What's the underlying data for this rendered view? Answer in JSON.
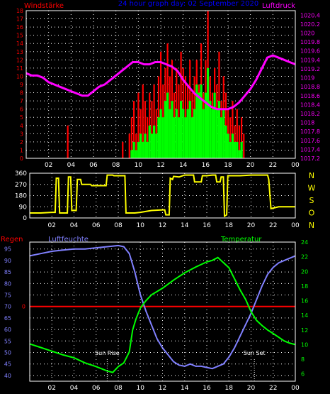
{
  "header": {
    "left_label": "Windstärke",
    "title": "24 hour graph day: 02 September 2020",
    "right_label": "Luftdruck"
  },
  "colors": {
    "background": "#000000",
    "grid": "#ffffff",
    "axis_text": "#ffffff",
    "wind_gust": "#ff0000",
    "wind_avg": "#00ff00",
    "pressure": "#ff00ff",
    "wind_dir": "#ffff00",
    "humidity": "#8080ff",
    "temperature": "#00ff00",
    "rain": "#ff0000",
    "title": "#0000ff",
    "pressure_axis": "#ff00ff",
    "wind_axis": "#ff0000"
  },
  "chart_data": [
    {
      "type": "bar",
      "name_key": "wind_pressure",
      "x_ticks": [
        "02",
        "04",
        "06",
        "08",
        "10",
        "12",
        "14",
        "16",
        "18",
        "20",
        "22",
        "00"
      ],
      "wind_axis_ticks": [
        "0",
        "1",
        "2",
        "3",
        "4",
        "5",
        "6",
        "7",
        "8",
        "9",
        "10",
        "11",
        "12",
        "13",
        "14",
        "15",
        "16",
        "17",
        "18"
      ],
      "pressure_axis_ticks": [
        "1017.2",
        "1017.4",
        "1017.6",
        "1017.8",
        "1018",
        "1018.2",
        "1018.4",
        "1018.6",
        "1018.8",
        "1019",
        "1019.2",
        "1019.4",
        "1019.6",
        "1019.8",
        "1020",
        "1020.2",
        "1020.4"
      ],
      "wind_ylim": [
        0,
        18
      ],
      "pressure_ylim": [
        1017.2,
        1020.5
      ],
      "gust_bars": [
        [
          3.7,
          4
        ],
        [
          8.6,
          2
        ],
        [
          9.2,
          3
        ],
        [
          9.4,
          5
        ],
        [
          9.6,
          7
        ],
        [
          9.8,
          3
        ],
        [
          10.0,
          8
        ],
        [
          10.2,
          6
        ],
        [
          10.4,
          9
        ],
        [
          10.6,
          7
        ],
        [
          10.8,
          5
        ],
        [
          11.0,
          8
        ],
        [
          11.2,
          7
        ],
        [
          11.4,
          9
        ],
        [
          11.6,
          6
        ],
        [
          11.8,
          10
        ],
        [
          12.0,
          13
        ],
        [
          12.2,
          9
        ],
        [
          12.4,
          11
        ],
        [
          12.6,
          14
        ],
        [
          12.8,
          10
        ],
        [
          13.0,
          12
        ],
        [
          13.2,
          8
        ],
        [
          13.4,
          11
        ],
        [
          13.6,
          9
        ],
        [
          13.8,
          13
        ],
        [
          14.0,
          11
        ],
        [
          14.2,
          10
        ],
        [
          14.4,
          9
        ],
        [
          14.6,
          12
        ],
        [
          14.8,
          8
        ],
        [
          15.0,
          10
        ],
        [
          15.2,
          12
        ],
        [
          15.4,
          9
        ],
        [
          15.6,
          14
        ],
        [
          15.8,
          8
        ],
        [
          16.0,
          12
        ],
        [
          16.2,
          18
        ],
        [
          16.4,
          10
        ],
        [
          16.6,
          8
        ],
        [
          16.8,
          11
        ],
        [
          17.0,
          9
        ],
        [
          17.2,
          13
        ],
        [
          17.4,
          7
        ],
        [
          17.6,
          10
        ],
        [
          17.8,
          8
        ],
        [
          18.0,
          6
        ],
        [
          18.2,
          5
        ],
        [
          18.4,
          7
        ],
        [
          18.6,
          4
        ],
        [
          18.8,
          6
        ],
        [
          19.0,
          4
        ],
        [
          19.2,
          5
        ],
        [
          19.4,
          3
        ]
      ],
      "avg_bars": [
        [
          9.4,
          1
        ],
        [
          9.6,
          2
        ],
        [
          9.8,
          1
        ],
        [
          10.0,
          2
        ],
        [
          10.2,
          3
        ],
        [
          10.4,
          2
        ],
        [
          10.6,
          3
        ],
        [
          10.8,
          2
        ],
        [
          11.0,
          4
        ],
        [
          11.2,
          3
        ],
        [
          11.4,
          4
        ],
        [
          11.6,
          3
        ],
        [
          11.8,
          5
        ],
        [
          12.0,
          6
        ],
        [
          12.2,
          5
        ],
        [
          12.4,
          7
        ],
        [
          12.6,
          8
        ],
        [
          12.8,
          6
        ],
        [
          13.0,
          7
        ],
        [
          13.2,
          5
        ],
        [
          13.4,
          6
        ],
        [
          13.6,
          5
        ],
        [
          13.8,
          7
        ],
        [
          14.0,
          6
        ],
        [
          14.2,
          5
        ],
        [
          14.4,
          6
        ],
        [
          14.6,
          7
        ],
        [
          14.8,
          5
        ],
        [
          15.0,
          6
        ],
        [
          15.2,
          9
        ],
        [
          15.4,
          8
        ],
        [
          15.6,
          9
        ],
        [
          15.8,
          6
        ],
        [
          16.0,
          8
        ],
        [
          16.2,
          11
        ],
        [
          16.4,
          7
        ],
        [
          16.6,
          6
        ],
        [
          16.8,
          8
        ],
        [
          17.0,
          6
        ],
        [
          17.2,
          7
        ],
        [
          17.4,
          5
        ],
        [
          17.6,
          6
        ],
        [
          17.8,
          4
        ],
        [
          18.0,
          3
        ],
        [
          18.2,
          2
        ],
        [
          18.4,
          3
        ],
        [
          18.6,
          2
        ],
        [
          18.8,
          2
        ],
        [
          19.0,
          1
        ],
        [
          19.2,
          2
        ]
      ],
      "pressure_series": [
        [
          0,
          1019.1
        ],
        [
          0.5,
          1019.05
        ],
        [
          1,
          1019.05
        ],
        [
          1.5,
          1019.0
        ],
        [
          2,
          1018.9
        ],
        [
          2.5,
          1018.85
        ],
        [
          3,
          1018.8
        ],
        [
          3.5,
          1018.75
        ],
        [
          4,
          1018.7
        ],
        [
          4.5,
          1018.65
        ],
        [
          5,
          1018.6
        ],
        [
          5.5,
          1018.6
        ],
        [
          6,
          1018.7
        ],
        [
          6.5,
          1018.8
        ],
        [
          7,
          1018.85
        ],
        [
          7.5,
          1018.95
        ],
        [
          8,
          1019.05
        ],
        [
          8.5,
          1019.15
        ],
        [
          9,
          1019.25
        ],
        [
          9.5,
          1019.35
        ],
        [
          10,
          1019.35
        ],
        [
          10.5,
          1019.3
        ],
        [
          11,
          1019.3
        ],
        [
          11.5,
          1019.35
        ],
        [
          12,
          1019.35
        ],
        [
          12.5,
          1019.3
        ],
        [
          13,
          1019.25
        ],
        [
          13.5,
          1019.15
        ],
        [
          14,
          1018.95
        ],
        [
          14.5,
          1018.8
        ],
        [
          15,
          1018.65
        ],
        [
          15.5,
          1018.55
        ],
        [
          16,
          1018.45
        ],
        [
          16.5,
          1018.35
        ],
        [
          17,
          1018.3
        ],
        [
          17.5,
          1018.3
        ],
        [
          18,
          1018.3
        ],
        [
          18.5,
          1018.35
        ],
        [
          19,
          1018.45
        ],
        [
          19.5,
          1018.6
        ],
        [
          20,
          1018.75
        ],
        [
          20.5,
          1018.95
        ],
        [
          21,
          1019.2
        ],
        [
          21.5,
          1019.45
        ],
        [
          22,
          1019.5
        ],
        [
          22.5,
          1019.45
        ],
        [
          23,
          1019.4
        ],
        [
          23.5,
          1019.35
        ],
        [
          24,
          1019.3
        ]
      ]
    },
    {
      "type": "line",
      "name_key": "wind_direction",
      "x_ticks": [
        "02",
        "04",
        "06",
        "08",
        "10",
        "12",
        "14",
        "16",
        "18",
        "20",
        "22",
        "00"
      ],
      "y_ticks": [
        "0",
        "90",
        "180",
        "270",
        "360"
      ],
      "compass_labels": [
        "N",
        "W",
        "S",
        "O",
        "N"
      ],
      "ylim": [
        0,
        360
      ],
      "series": [
        [
          0,
          40
        ],
        [
          1.0,
          40
        ],
        [
          2.0,
          45
        ],
        [
          2.3,
          45
        ],
        [
          2.4,
          320
        ],
        [
          2.6,
          320
        ],
        [
          2.7,
          40
        ],
        [
          3.4,
          40
        ],
        [
          3.5,
          330
        ],
        [
          3.7,
          330
        ],
        [
          3.8,
          60
        ],
        [
          4.2,
          60
        ],
        [
          4.3,
          310
        ],
        [
          4.6,
          310
        ],
        [
          4.7,
          270
        ],
        [
          5.5,
          270
        ],
        [
          5.6,
          260
        ],
        [
          6.9,
          260
        ],
        [
          7.0,
          345
        ],
        [
          7.5,
          345
        ],
        [
          7.6,
          340
        ],
        [
          8.6,
          340
        ],
        [
          8.7,
          40
        ],
        [
          9.5,
          40
        ],
        [
          10.0,
          45
        ],
        [
          11.0,
          60
        ],
        [
          12.0,
          65
        ],
        [
          12.2,
          65
        ],
        [
          12.3,
          25
        ],
        [
          12.6,
          25
        ],
        [
          12.7,
          320
        ],
        [
          12.9,
          310
        ],
        [
          13.0,
          335
        ],
        [
          13.5,
          330
        ],
        [
          14.0,
          345
        ],
        [
          14.8,
          345
        ],
        [
          14.9,
          290
        ],
        [
          15.5,
          290
        ],
        [
          15.6,
          340
        ],
        [
          16.0,
          340
        ],
        [
          16.5,
          345
        ],
        [
          16.8,
          345
        ],
        [
          16.9,
          290
        ],
        [
          17.2,
          290
        ],
        [
          17.3,
          330
        ],
        [
          17.5,
          330
        ],
        [
          17.6,
          15
        ],
        [
          17.8,
          25
        ],
        [
          17.9,
          340
        ],
        [
          19.0,
          340
        ],
        [
          20.0,
          345
        ],
        [
          21.5,
          345
        ],
        [
          21.6,
          310
        ],
        [
          21.8,
          75
        ],
        [
          22.5,
          90
        ],
        [
          24,
          90
        ]
      ]
    },
    {
      "type": "line",
      "name_key": "humidity_temperature",
      "left_label": "Regen",
      "humidity_label": "Luftfeuchte",
      "temperature_label": "Temperatur",
      "sunrise_label": "Sun Rise",
      "sunset_label": "Sun Set",
      "sunrise_hour": 7.0,
      "sunset_hour": 20.3,
      "x_ticks": [
        "02",
        "04",
        "06",
        "08",
        "10",
        "12",
        "14",
        "16",
        "18",
        "20",
        "22",
        "00"
      ],
      "humidity_ticks": [
        "40",
        "45",
        "50",
        "55",
        "60",
        "65",
        "70",
        "75",
        "80",
        "85",
        "90",
        "95"
      ],
      "rain_tick": "0",
      "temperature_ticks": [
        "6",
        "8",
        "10",
        "12",
        "14",
        "16",
        "18",
        "20",
        "22",
        "24"
      ],
      "humidity_ylim": [
        37.5,
        98
      ],
      "temperature_ylim": [
        5,
        24
      ],
      "rain_value": 0,
      "humidity_series": [
        [
          0,
          92
        ],
        [
          1,
          93
        ],
        [
          2,
          94
        ],
        [
          3,
          94.5
        ],
        [
          4,
          95
        ],
        [
          5,
          95
        ],
        [
          6,
          95.5
        ],
        [
          7,
          96
        ],
        [
          8,
          96.5
        ],
        [
          8.5,
          96
        ],
        [
          9,
          93
        ],
        [
          9.5,
          85
        ],
        [
          10,
          75
        ],
        [
          10.5,
          68
        ],
        [
          11,
          62
        ],
        [
          11.5,
          56
        ],
        [
          12,
          52
        ],
        [
          12.5,
          49
        ],
        [
          13,
          46
        ],
        [
          13.5,
          44.5
        ],
        [
          14,
          44
        ],
        [
          14.5,
          45
        ],
        [
          15,
          44
        ],
        [
          15.5,
          44
        ],
        [
          16,
          43.5
        ],
        [
          16.5,
          43
        ],
        [
          17,
          44
        ],
        [
          17.5,
          45
        ],
        [
          18,
          48
        ],
        [
          18.5,
          52
        ],
        [
          19,
          57
        ],
        [
          19.5,
          62
        ],
        [
          20,
          67
        ],
        [
          20.5,
          73
        ],
        [
          21,
          79
        ],
        [
          21.5,
          84
        ],
        [
          22,
          87
        ],
        [
          22.5,
          89
        ],
        [
          23,
          90
        ],
        [
          23.5,
          91
        ],
        [
          24,
          92
        ]
      ],
      "temperature_series": [
        [
          0,
          10.1
        ],
        [
          1,
          9.6
        ],
        [
          2,
          9.1
        ],
        [
          3,
          8.6
        ],
        [
          4,
          8.2
        ],
        [
          5,
          7.5
        ],
        [
          6,
          7.0
        ],
        [
          7,
          6.4
        ],
        [
          7.5,
          6.2
        ],
        [
          8,
          7.0
        ],
        [
          8.5,
          7.5
        ],
        [
          9,
          9.0
        ],
        [
          9.3,
          12.0
        ],
        [
          9.6,
          13.5
        ],
        [
          10,
          15.0
        ],
        [
          10.5,
          16.0
        ],
        [
          11,
          16.8
        ],
        [
          12,
          17.7
        ],
        [
          13,
          18.8
        ],
        [
          14,
          19.8
        ],
        [
          15,
          20.6
        ],
        [
          16,
          21.3
        ],
        [
          16.5,
          21.5
        ],
        [
          17,
          21.9
        ],
        [
          17.5,
          21.2
        ],
        [
          18,
          20.5
        ],
        [
          18.5,
          19.0
        ],
        [
          19,
          17.5
        ],
        [
          19.5,
          16.2
        ],
        [
          20,
          14.5
        ],
        [
          20.5,
          13.3
        ],
        [
          21,
          12.6
        ],
        [
          21.5,
          12.0
        ],
        [
          22,
          11.5
        ],
        [
          22.5,
          11.0
        ],
        [
          23,
          10.5
        ],
        [
          23.5,
          10.2
        ],
        [
          24,
          10.0
        ]
      ]
    }
  ]
}
